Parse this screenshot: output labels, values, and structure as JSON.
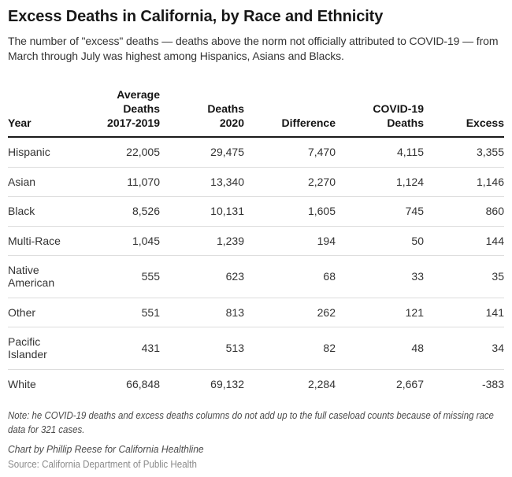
{
  "chart_data": {
    "type": "table",
    "title": "Excess Deaths in California, by Race and Ethnicity",
    "subtitle": "The number of \"excess\" deaths — deaths above the norm not officially attributed to COVID-19 — from March through July was highest among Hispanics, Asians and Blacks.",
    "columns": [
      "Year",
      "Average Deaths 2017-2019",
      "Deaths 2020",
      "Difference",
      "COVID-19 Deaths",
      "Excess"
    ],
    "column_display": [
      "Year",
      "Average\nDeaths\n2017-2019",
      "Deaths\n2020",
      "Difference",
      "COVID-19\nDeaths",
      "Excess"
    ],
    "rows": [
      [
        "Hispanic",
        "22,005",
        "29,475",
        "7,470",
        "4,115",
        "3,355"
      ],
      [
        "Asian",
        "11,070",
        "13,340",
        "2,270",
        "1,124",
        "1,146"
      ],
      [
        "Black",
        "8,526",
        "10,131",
        "1,605",
        "745",
        "860"
      ],
      [
        "Multi-Race",
        "1,045",
        "1,239",
        "194",
        "50",
        "144"
      ],
      [
        "Native American",
        "555",
        "623",
        "68",
        "33",
        "35"
      ],
      [
        "Other",
        "551",
        "813",
        "262",
        "121",
        "141"
      ],
      [
        "Pacific Islander",
        "431",
        "513",
        "82",
        "48",
        "34"
      ],
      [
        "White",
        "66,848",
        "69,132",
        "2,284",
        "2,667",
        "-383"
      ]
    ],
    "note": "Note: he COVID-19 deaths and excess deaths columns do not add up to the full caseload counts because of missing race data for 321 cases.",
    "byline": "Chart by Phillip Reese for California Healthline",
    "source": "Source: California Department of Public Health"
  },
  "colors": {
    "title_text": "#181818",
    "body_text": "#333333",
    "header_border": "#1a1a1a",
    "row_border": "#dddddd",
    "note_text": "#4a4a4a",
    "source_text": "#8a8a8a",
    "background": "#ffffff"
  }
}
